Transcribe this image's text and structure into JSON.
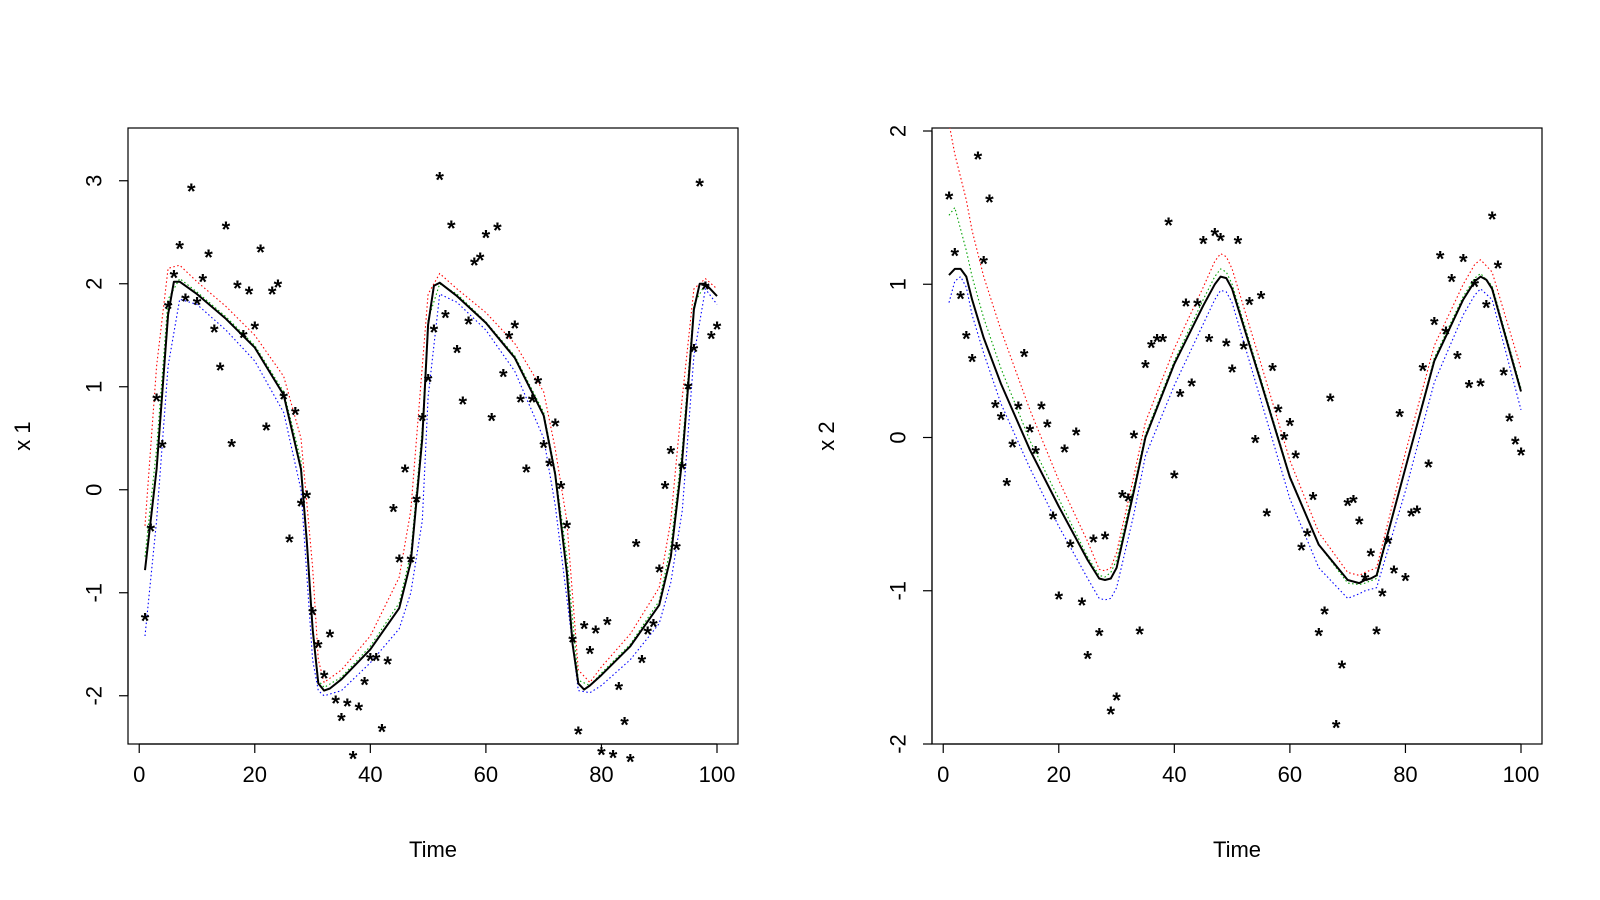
{
  "chart_data": [
    {
      "type": "line",
      "xlabel": "Time",
      "ylabel": "x 1",
      "xlim": [
        1,
        100
      ],
      "ylim": [
        -2.75,
        3.25
      ],
      "xticks": [
        0,
        20,
        40,
        60,
        80,
        100
      ],
      "xtick_labels": [
        "0",
        "20",
        "40",
        "60",
        "80",
        "100"
      ],
      "yticks": [
        -2,
        -1,
        0,
        1,
        2,
        3
      ],
      "ytick_labels": [
        "-2",
        "-1",
        "0",
        "1",
        "2",
        "3"
      ],
      "grid": false,
      "colors": {
        "fit": "#000000",
        "upper": "#ff0000",
        "mid": "#00a000",
        "lower": "#0000ff"
      },
      "marker_glyph": "*",
      "observations": {
        "x": [
          1,
          2,
          3,
          4,
          5,
          6,
          7,
          8,
          9,
          10,
          11,
          12,
          13,
          14,
          15,
          16,
          17,
          18,
          19,
          20,
          21,
          22,
          23,
          24,
          25,
          26,
          27,
          28,
          29,
          30,
          31,
          32,
          33,
          34,
          35,
          36,
          37,
          38,
          39,
          40,
          41,
          42,
          43,
          44,
          45,
          46,
          47,
          48,
          49,
          50,
          51,
          52,
          53,
          54,
          55,
          56,
          57,
          58,
          59,
          60,
          61,
          62,
          63,
          64,
          65,
          66,
          67,
          68,
          69,
          70,
          71,
          72,
          73,
          74,
          75,
          76,
          77,
          78,
          79,
          80,
          81,
          82,
          83,
          84,
          85,
          86,
          87,
          88,
          89,
          90,
          91,
          92,
          93,
          94,
          95,
          96,
          97,
          98,
          99,
          100
        ],
        "y": [
          -1.25,
          -0.38,
          0.88,
          0.43,
          1.78,
          2.08,
          2.36,
          1.85,
          2.92,
          1.82,
          2.04,
          2.28,
          1.55,
          1.18,
          2.55,
          0.44,
          1.98,
          1.5,
          1.92,
          1.58,
          2.33,
          0.6,
          1.92,
          1.99,
          0.9,
          -0.49,
          0.75,
          -0.14,
          -0.06,
          -1.19,
          -1.51,
          -1.81,
          -1.41,
          -2.05,
          -2.22,
          -2.08,
          -2.59,
          -2.12,
          -1.87,
          -1.64,
          -1.64,
          -2.33,
          -1.67,
          -0.19,
          -0.68,
          0.19,
          -0.68,
          -0.1,
          0.69,
          1.07,
          1.55,
          3.03,
          1.69,
          2.56,
          1.35,
          0.85,
          1.63,
          2.2,
          2.25,
          2.47,
          0.69,
          2.54,
          1.12,
          1.49,
          1.59,
          0.87,
          0.19,
          0.87,
          1.05,
          0.43,
          0.25,
          0.64,
          0.03,
          -0.35,
          -1.46,
          -2.35,
          -1.33,
          -1.57,
          -1.37,
          -2.55,
          -1.29,
          -2.58,
          -1.92,
          -2.26,
          -2.62,
          -0.53,
          -1.66,
          -1.38,
          -1.31,
          -0.78,
          0.03,
          0.37,
          -0.56,
          0.22,
          1.0,
          1.36,
          2.97,
          1.97,
          1.49,
          1.58
        ]
      },
      "series": [
        {
          "name": "",
          "role": "fit",
          "x": [
            1,
            3,
            5,
            6,
            7,
            10,
            15,
            20,
            25,
            28,
            29,
            30,
            31,
            32,
            33,
            35,
            40,
            45,
            47,
            49,
            50,
            51,
            52,
            55,
            60,
            65,
            70,
            72,
            74,
            75,
            76,
            77,
            78,
            80,
            85,
            90,
            92,
            94,
            95,
            96,
            97,
            98,
            100
          ],
          "y": [
            -0.78,
            0.2,
            1.7,
            2.02,
            2.02,
            1.9,
            1.66,
            1.38,
            0.92,
            0.2,
            -0.5,
            -1.35,
            -1.88,
            -1.95,
            -1.93,
            -1.84,
            -1.55,
            -1.15,
            -0.7,
            0.5,
            1.6,
            1.98,
            2.01,
            1.88,
            1.62,
            1.28,
            0.72,
            0.15,
            -0.8,
            -1.5,
            -1.88,
            -1.94,
            -1.9,
            -1.8,
            -1.52,
            -1.12,
            -0.65,
            0.3,
            1.0,
            1.75,
            2.0,
            2.0,
            1.88
          ]
        },
        {
          "name": "",
          "role": "upper",
          "x": [
            1,
            3,
            5,
            7,
            10,
            15,
            20,
            25,
            28,
            30,
            31,
            32,
            35,
            40,
            45,
            47,
            49,
            50,
            52,
            55,
            60,
            65,
            70,
            72,
            74,
            76,
            78,
            80,
            85,
            90,
            92,
            94,
            96,
            98,
            100
          ],
          "y": [
            -0.35,
            1.2,
            2.15,
            2.18,
            2.02,
            1.78,
            1.5,
            1.1,
            0.5,
            -0.75,
            -1.65,
            -1.87,
            -1.75,
            -1.42,
            -0.85,
            -0.2,
            1.2,
            1.9,
            2.1,
            1.95,
            1.72,
            1.42,
            0.95,
            0.4,
            -0.3,
            -1.75,
            -1.87,
            -1.72,
            -1.4,
            -0.95,
            -0.3,
            0.9,
            1.95,
            2.05,
            1.95
          ]
        },
        {
          "name": "",
          "role": "mid",
          "x": [
            1,
            3,
            5,
            7,
            10,
            15,
            20,
            25,
            28,
            30,
            31,
            32,
            35,
            40,
            45,
            47,
            49,
            50,
            52,
            55,
            60,
            65,
            70,
            72,
            74,
            76,
            78,
            80,
            85,
            90,
            92,
            94,
            96,
            98,
            100
          ],
          "y": [
            -0.65,
            0.4,
            1.85,
            2.05,
            1.92,
            1.68,
            1.4,
            0.95,
            0.28,
            -1.3,
            -1.85,
            -1.92,
            -1.82,
            -1.52,
            -1.1,
            -0.62,
            0.6,
            1.65,
            2.0,
            1.9,
            1.63,
            1.3,
            0.75,
            0.18,
            -0.65,
            -1.85,
            -1.9,
            -1.78,
            -1.5,
            -1.08,
            -0.55,
            0.4,
            1.8,
            2.0,
            1.88
          ]
        },
        {
          "name": "",
          "role": "lower",
          "x": [
            1,
            3,
            5,
            7,
            10,
            15,
            20,
            25,
            28,
            30,
            31,
            32,
            35,
            40,
            45,
            47,
            49,
            50,
            52,
            55,
            60,
            65,
            70,
            72,
            74,
            76,
            78,
            80,
            85,
            90,
            92,
            94,
            96,
            98,
            100
          ],
          "y": [
            -1.42,
            -0.3,
            1.2,
            1.85,
            1.8,
            1.55,
            1.25,
            0.75,
            0.0,
            -1.65,
            -1.95,
            -2.0,
            -1.95,
            -1.68,
            -1.35,
            -1.0,
            -0.3,
            0.9,
            1.9,
            1.82,
            1.55,
            1.15,
            0.5,
            -0.15,
            -1.05,
            -1.95,
            -1.97,
            -1.9,
            -1.65,
            -1.3,
            -0.9,
            -0.2,
            1.3,
            1.95,
            1.8
          ]
        }
      ]
    },
    {
      "type": "line",
      "xlabel": "Time",
      "ylabel": "x 2",
      "xlim": [
        1,
        100
      ],
      "ylim": [
        -2,
        2
      ],
      "xticks": [
        0,
        20,
        40,
        60,
        80,
        100
      ],
      "xtick_labels": [
        "0",
        "20",
        "40",
        "60",
        "80",
        "100"
      ],
      "yticks": [
        -2,
        -1,
        0,
        1,
        2
      ],
      "ytick_labels": [
        "-2",
        "-1",
        "0",
        "1",
        "2"
      ],
      "grid": false,
      "colors": {
        "fit": "#000000",
        "upper": "#ff0000",
        "mid": "#00a000",
        "lower": "#0000ff"
      },
      "marker_glyph": "*",
      "observations": {
        "x": [
          1,
          2,
          3,
          4,
          5,
          6,
          7,
          8,
          9,
          10,
          11,
          12,
          13,
          14,
          15,
          16,
          17,
          18,
          19,
          20,
          21,
          22,
          23,
          24,
          25,
          26,
          27,
          28,
          29,
          30,
          31,
          32,
          33,
          34,
          35,
          36,
          37,
          38,
          39,
          40,
          41,
          42,
          43,
          44,
          45,
          46,
          47,
          48,
          49,
          50,
          51,
          52,
          53,
          54,
          55,
          56,
          57,
          58,
          59,
          60,
          61,
          62,
          63,
          64,
          65,
          66,
          67,
          68,
          69,
          70,
          71,
          72,
          73,
          74,
          75,
          76,
          77,
          78,
          79,
          80,
          81,
          82,
          83,
          84,
          85,
          86,
          87,
          88,
          89,
          90,
          91,
          92,
          93,
          94,
          95,
          96,
          97,
          98,
          99,
          100
        ],
        "y": [
          1.57,
          1.2,
          0.92,
          0.66,
          0.51,
          1.83,
          1.15,
          1.55,
          0.21,
          0.13,
          -0.3,
          -0.05,
          0.2,
          0.54,
          0.05,
          -0.09,
          0.2,
          0.08,
          -0.52,
          -1.04,
          -0.08,
          -0.7,
          0.03,
          -1.08,
          -1.43,
          -0.67,
          -1.28,
          -0.65,
          -1.79,
          -1.7,
          -0.38,
          -0.4,
          0.01,
          -1.27,
          0.47,
          0.6,
          0.64,
          0.64,
          1.4,
          -0.25,
          0.28,
          0.87,
          0.35,
          0.87,
          1.28,
          0.64,
          1.33,
          1.3,
          0.61,
          0.44,
          1.28,
          0.59,
          0.88,
          -0.02,
          0.92,
          -0.5,
          0.45,
          0.18,
          0.0,
          0.09,
          -0.12,
          -0.72,
          -0.63,
          -0.39,
          -1.28,
          -1.14,
          0.25,
          -1.88,
          -1.49,
          -0.43,
          -0.41,
          -0.55,
          -0.92,
          -0.76,
          -1.27,
          -1.02,
          -0.68,
          -0.87,
          0.15,
          -0.92,
          -0.5,
          -0.48,
          0.45,
          -0.18,
          0.75,
          1.18,
          0.69,
          1.03,
          0.53,
          1.16,
          0.34,
          1.0,
          0.35,
          0.86,
          1.44,
          1.12,
          0.42,
          0.12,
          -0.03,
          -0.1
        ]
      },
      "series": [
        {
          "name": "",
          "role": "fit",
          "x": [
            1,
            2,
            3,
            4,
            5,
            7,
            10,
            15,
            20,
            25,
            27,
            28,
            29,
            30,
            33,
            35,
            40,
            45,
            47,
            48,
            49,
            50,
            55,
            60,
            65,
            70,
            72,
            73,
            74,
            75,
            80,
            85,
            90,
            92,
            93,
            94,
            95,
            100
          ],
          "y": [
            1.06,
            1.1,
            1.1,
            1.05,
            0.9,
            0.65,
            0.35,
            -0.08,
            -0.45,
            -0.8,
            -0.92,
            -0.93,
            -0.92,
            -0.85,
            -0.35,
            0.0,
            0.48,
            0.86,
            1.0,
            1.05,
            1.04,
            0.97,
            0.36,
            -0.26,
            -0.7,
            -0.93,
            -0.95,
            -0.93,
            -0.92,
            -0.9,
            -0.2,
            0.5,
            0.9,
            1.02,
            1.05,
            1.03,
            0.97,
            0.3
          ]
        },
        {
          "name": "",
          "role": "upper",
          "x": [
            1,
            2,
            4,
            5,
            7,
            10,
            15,
            20,
            25,
            27,
            28,
            29,
            30,
            33,
            35,
            40,
            45,
            47,
            48,
            49,
            50,
            55,
            60,
            65,
            70,
            72,
            73,
            75,
            80,
            85,
            90,
            92,
            93,
            95,
            100
          ],
          "y": [
            2.05,
            1.85,
            1.55,
            1.35,
            1.05,
            0.7,
            0.18,
            -0.28,
            -0.68,
            -0.86,
            -0.87,
            -0.85,
            -0.75,
            -0.25,
            0.1,
            0.58,
            0.98,
            1.15,
            1.2,
            1.18,
            1.1,
            0.48,
            -0.15,
            -0.62,
            -0.88,
            -0.9,
            -0.88,
            -0.85,
            -0.1,
            0.6,
            1.0,
            1.13,
            1.16,
            1.08,
            0.45
          ]
        },
        {
          "name": "",
          "role": "mid",
          "x": [
            1,
            2,
            4,
            5,
            7,
            10,
            15,
            20,
            25,
            27,
            28,
            29,
            30,
            33,
            35,
            40,
            45,
            47,
            48,
            49,
            50,
            55,
            60,
            65,
            70,
            72,
            73,
            75,
            80,
            85,
            90,
            92,
            93,
            95,
            100
          ],
          "y": [
            1.45,
            1.5,
            1.22,
            1.05,
            0.78,
            0.45,
            -0.02,
            -0.4,
            -0.78,
            -0.9,
            -0.91,
            -0.88,
            -0.8,
            -0.32,
            0.02,
            0.5,
            0.9,
            1.05,
            1.1,
            1.08,
            1.0,
            0.38,
            -0.25,
            -0.7,
            -0.95,
            -0.96,
            -0.95,
            -0.92,
            -0.2,
            0.52,
            0.92,
            1.04,
            1.07,
            0.99,
            0.32
          ]
        },
        {
          "name": "",
          "role": "lower",
          "x": [
            1,
            2,
            3,
            4,
            5,
            7,
            10,
            15,
            20,
            25,
            27,
            28,
            29,
            30,
            33,
            35,
            40,
            45,
            47,
            48,
            49,
            50,
            55,
            60,
            65,
            70,
            72,
            73,
            75,
            80,
            85,
            90,
            92,
            93,
            95,
            100
          ],
          "y": [
            0.88,
            1.02,
            1.05,
            0.98,
            0.8,
            0.55,
            0.22,
            -0.2,
            -0.58,
            -0.92,
            -1.05,
            -1.06,
            -1.05,
            -0.98,
            -0.5,
            -0.12,
            0.34,
            0.74,
            0.9,
            0.96,
            0.95,
            0.88,
            0.24,
            -0.4,
            -0.85,
            -1.05,
            -1.02,
            -1.0,
            -0.98,
            -0.35,
            0.36,
            0.8,
            0.93,
            0.97,
            0.9,
            0.18
          ]
        }
      ]
    }
  ]
}
